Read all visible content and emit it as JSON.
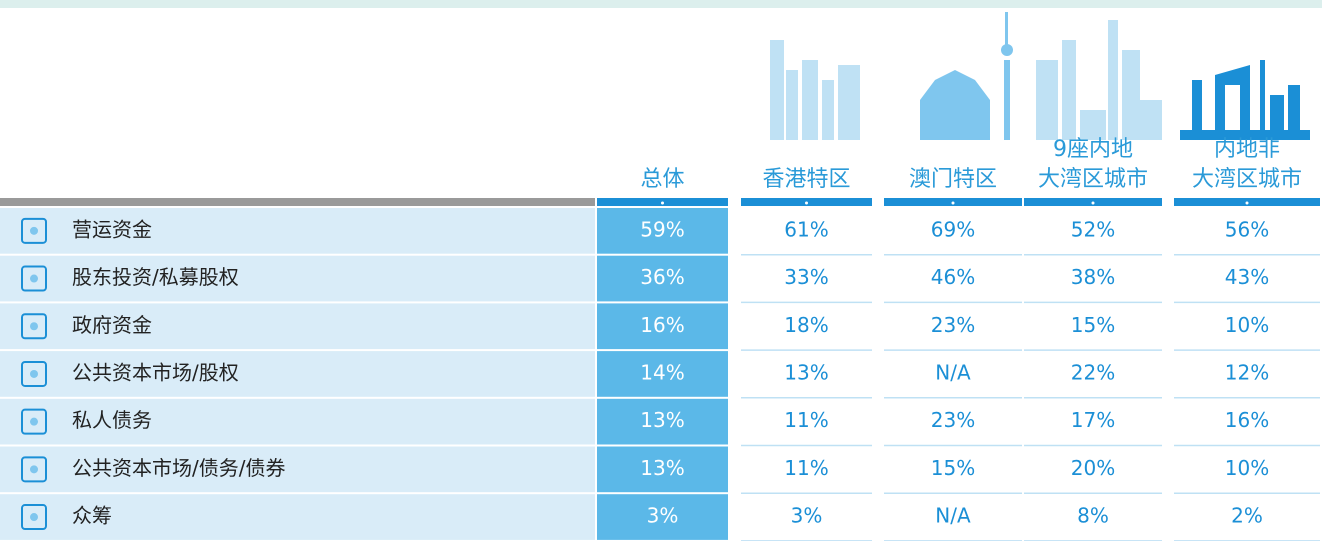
{
  "table": {
    "columns": [
      {
        "lines": [
          "总体"
        ]
      },
      {
        "lines": [
          "香港特区"
        ]
      },
      {
        "lines": [
          "澳门特区"
        ]
      },
      {
        "lines": [
          "9座内地",
          "大湾区城市"
        ]
      },
      {
        "lines": [
          "内地非",
          "大湾区城市"
        ]
      }
    ],
    "rows": [
      {
        "label": "营运资金",
        "values": [
          "59%",
          "61%",
          "69%",
          "52%",
          "56%"
        ]
      },
      {
        "label": "股东投资/私募股权",
        "values": [
          "36%",
          "33%",
          "46%",
          "38%",
          "43%"
        ]
      },
      {
        "label": "政府资金",
        "values": [
          "16%",
          "18%",
          "23%",
          "15%",
          "10%"
        ]
      },
      {
        "label": "公共资本市场/股权",
        "values": [
          "14%",
          "13%",
          "N/A",
          "22%",
          "12%"
        ]
      },
      {
        "label": "私人债务",
        "values": [
          "13%",
          "11%",
          "23%",
          "17%",
          "16%"
        ]
      },
      {
        "label": "公共资本市场/债务/债券",
        "values": [
          "13%",
          "11%",
          "15%",
          "20%",
          "10%"
        ]
      },
      {
        "label": "众筹",
        "values": [
          "3%",
          "3%",
          "N/A",
          "8%",
          "2%"
        ]
      }
    ]
  }
}
